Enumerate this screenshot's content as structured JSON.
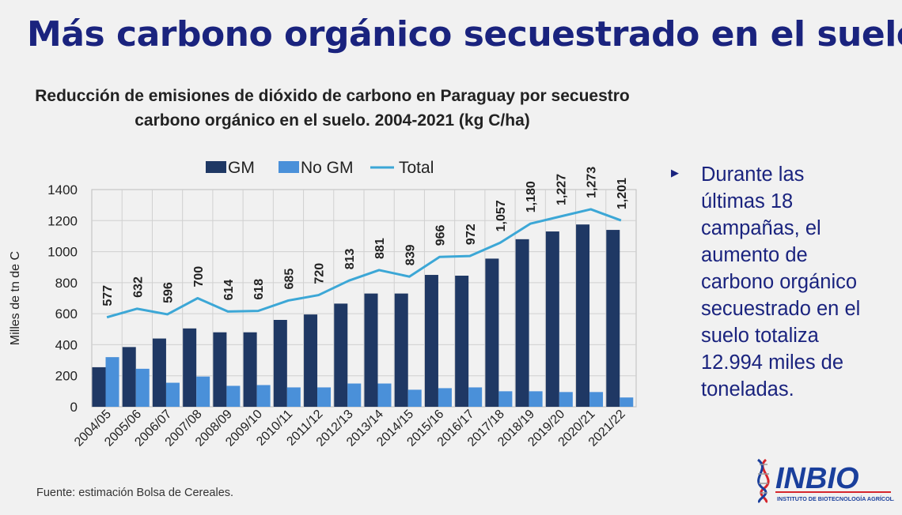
{
  "slide": {
    "title": "Más carbono orgánico secuestrado en el suelo",
    "bullet_marker": "▶",
    "bullet_text": "Durante las últimas 18 campañas, el aumento de carbono orgánico secuestrado en el suelo totaliza 12.994 miles de toneladas.",
    "footnote": "Fuente: estimación Bolsa de Cereales.",
    "logo_text": "INBIO",
    "logo_subtext": "INSTITUTO DE BIOTECNOLOGÍA AGRÍCOLA"
  },
  "colors": {
    "title": "#1a237e",
    "gm": "#1f3864",
    "no_gm": "#4a90d9",
    "total": "#3ca7d6",
    "logo_blue": "#1a3f9c",
    "logo_red": "#d6262d"
  },
  "chart_data": {
    "type": "bar",
    "title": "Reducción de emisiones de dióxido de carbono en Paraguay por secuestro carbono orgánico en el suelo. 2004-2021 (kg C/ha)",
    "xlabel": "",
    "ylabel": "Milles de tn de C",
    "ylim": [
      0,
      1400
    ],
    "yticks": [
      0,
      200,
      400,
      600,
      800,
      1000,
      1200,
      1400
    ],
    "grid": true,
    "legend_position": "top",
    "categories": [
      "2004/05",
      "2005/06",
      "2006/07",
      "2007/08",
      "2008/09",
      "2009/10",
      "2010/11",
      "2011/12",
      "2012/13",
      "2013/14",
      "2014/15",
      "2015/16",
      "2016/17",
      "2017/18",
      "2018/19",
      "2019/20",
      "2020/21",
      "2021/22"
    ],
    "series": [
      {
        "name": "GM",
        "type": "bar",
        "values": [
          255,
          385,
          440,
          505,
          480,
          480,
          560,
          595,
          665,
          730,
          730,
          850,
          845,
          955,
          1080,
          1130,
          1175,
          1140
        ]
      },
      {
        "name": "No GM",
        "type": "bar",
        "values": [
          320,
          245,
          155,
          195,
          135,
          140,
          125,
          125,
          150,
          150,
          110,
          120,
          125,
          100,
          100,
          95,
          95,
          60
        ]
      },
      {
        "name": "Total",
        "type": "line",
        "values": [
          577,
          632,
          596,
          700,
          614,
          618,
          685,
          720,
          813,
          881,
          839,
          966,
          972,
          1057,
          1180,
          1227,
          1273,
          1201
        ]
      }
    ],
    "data_labels": [
      "577",
      "632",
      "596",
      "700",
      "614",
      "618",
      "685",
      "720",
      "813",
      "881",
      "839",
      "966",
      "972",
      "1,057",
      "1,180",
      "1,227",
      "1,273",
      "1,201"
    ]
  }
}
